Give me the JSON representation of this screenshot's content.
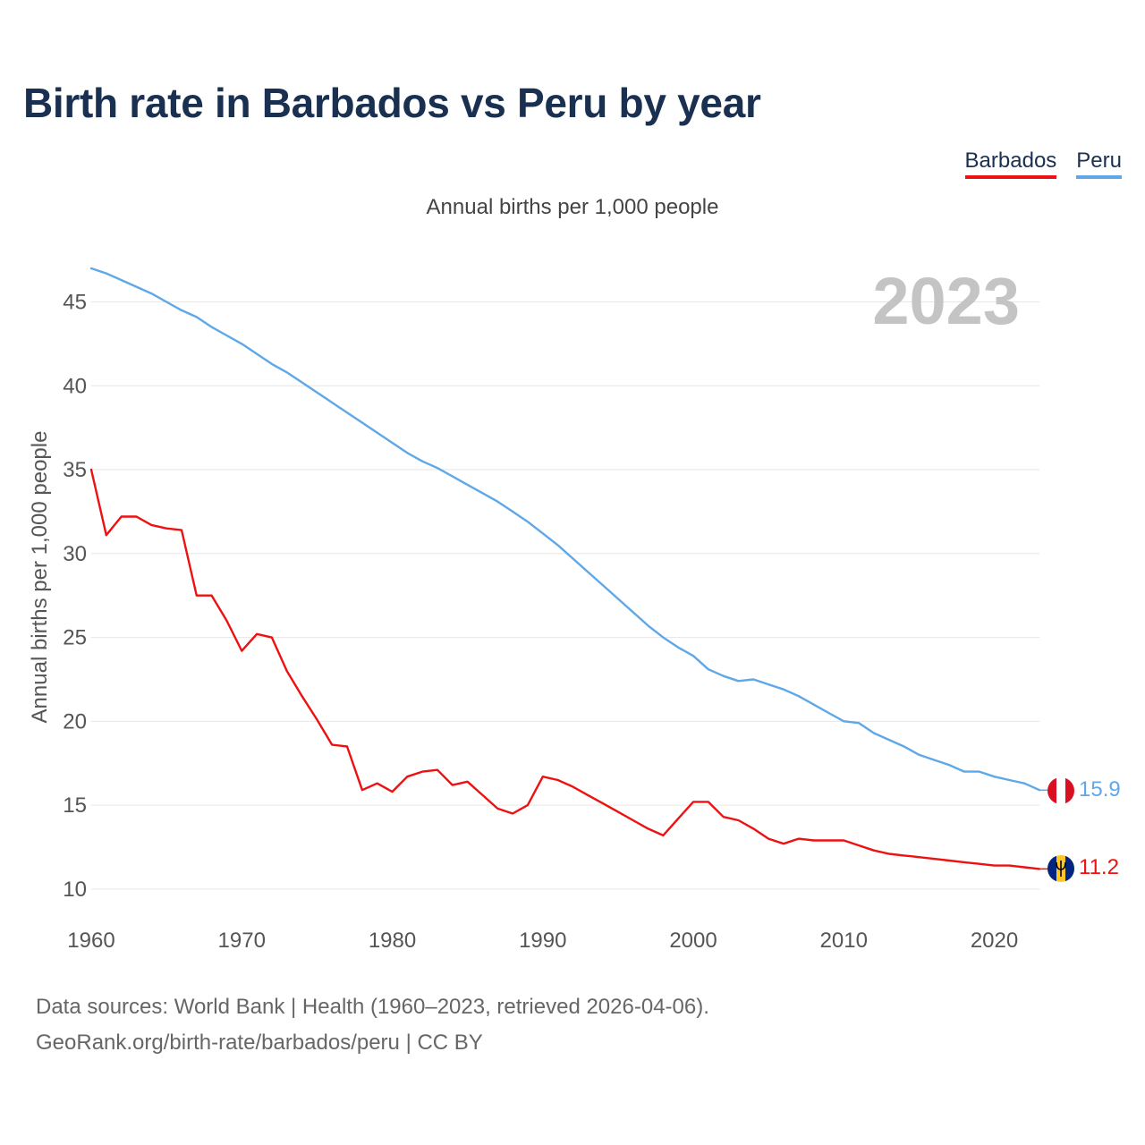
{
  "title": "Birth rate in Barbados vs Peru by year",
  "legend": [
    {
      "label": "Barbados",
      "color": "#ee1111"
    },
    {
      "label": "Peru",
      "color": "#5fa8e8"
    }
  ],
  "subtitle": "Annual births per 1,000 people",
  "footer": {
    "line1": "Data sources: World Bank | Health (1960–2023, retrieved 2026-04-06).",
    "line2": "GeoRank.org/birth-rate/barbados/peru | CC BY"
  },
  "chart_data": {
    "type": "line",
    "title": "Birth rate in Barbados vs Peru by year",
    "ylabel": "Annual births per 1,000 people",
    "xlabel": "",
    "year_watermark": "2023",
    "xlim": [
      1960,
      2023
    ],
    "ylim": [
      8.5,
      47
    ],
    "x_ticks": [
      1960,
      1970,
      1980,
      1990,
      2000,
      2010,
      2020
    ],
    "y_ticks": [
      10,
      15,
      20,
      25,
      30,
      35,
      40,
      45
    ],
    "grid": true,
    "x": [
      1960,
      1961,
      1962,
      1963,
      1964,
      1965,
      1966,
      1967,
      1968,
      1969,
      1970,
      1971,
      1972,
      1973,
      1974,
      1975,
      1976,
      1977,
      1978,
      1979,
      1980,
      1981,
      1982,
      1983,
      1984,
      1985,
      1986,
      1987,
      1988,
      1989,
      1990,
      1991,
      1992,
      1993,
      1994,
      1995,
      1996,
      1997,
      1998,
      1999,
      2000,
      2001,
      2002,
      2003,
      2004,
      2005,
      2006,
      2007,
      2008,
      2009,
      2010,
      2011,
      2012,
      2013,
      2014,
      2015,
      2016,
      2017,
      2018,
      2019,
      2020,
      2021,
      2022,
      2023
    ],
    "series": [
      {
        "name": "Peru",
        "color": "#5fa8e8",
        "end_label": "15.9",
        "values": [
          47.0,
          46.7,
          46.3,
          45.9,
          45.5,
          45.0,
          44.5,
          44.1,
          43.5,
          43.0,
          42.5,
          41.9,
          41.3,
          40.8,
          40.2,
          39.6,
          39.0,
          38.4,
          37.8,
          37.2,
          36.6,
          36.0,
          35.5,
          35.1,
          34.6,
          34.1,
          33.6,
          33.1,
          32.5,
          31.9,
          31.2,
          30.5,
          29.7,
          28.9,
          28.1,
          27.3,
          26.5,
          25.7,
          25.0,
          24.4,
          23.9,
          23.1,
          22.7,
          22.4,
          22.5,
          22.2,
          21.9,
          21.5,
          21.0,
          20.5,
          20.0,
          19.9,
          19.3,
          18.9,
          18.5,
          18.0,
          17.7,
          17.4,
          17.0,
          17.0,
          16.7,
          16.5,
          16.3,
          15.9
        ]
      },
      {
        "name": "Barbados",
        "color": "#ee1111",
        "end_label": "11.2",
        "values": [
          35.0,
          31.1,
          32.2,
          32.2,
          31.7,
          31.5,
          31.4,
          27.5,
          27.5,
          26.0,
          24.2,
          25.2,
          25.0,
          23.0,
          21.5,
          20.1,
          18.6,
          18.5,
          15.9,
          16.3,
          15.8,
          16.7,
          17.0,
          17.1,
          16.2,
          16.4,
          15.6,
          14.8,
          14.5,
          15.0,
          16.7,
          16.5,
          16.1,
          15.6,
          15.1,
          14.6,
          14.1,
          13.6,
          13.2,
          14.2,
          15.2,
          15.2,
          14.3,
          14.1,
          13.6,
          13.0,
          12.7,
          13.0,
          12.9,
          12.9,
          12.9,
          12.6,
          12.3,
          12.1,
          12.0,
          11.9,
          11.8,
          11.7,
          11.6,
          11.5,
          11.4,
          11.4,
          11.3,
          11.2
        ]
      }
    ]
  }
}
